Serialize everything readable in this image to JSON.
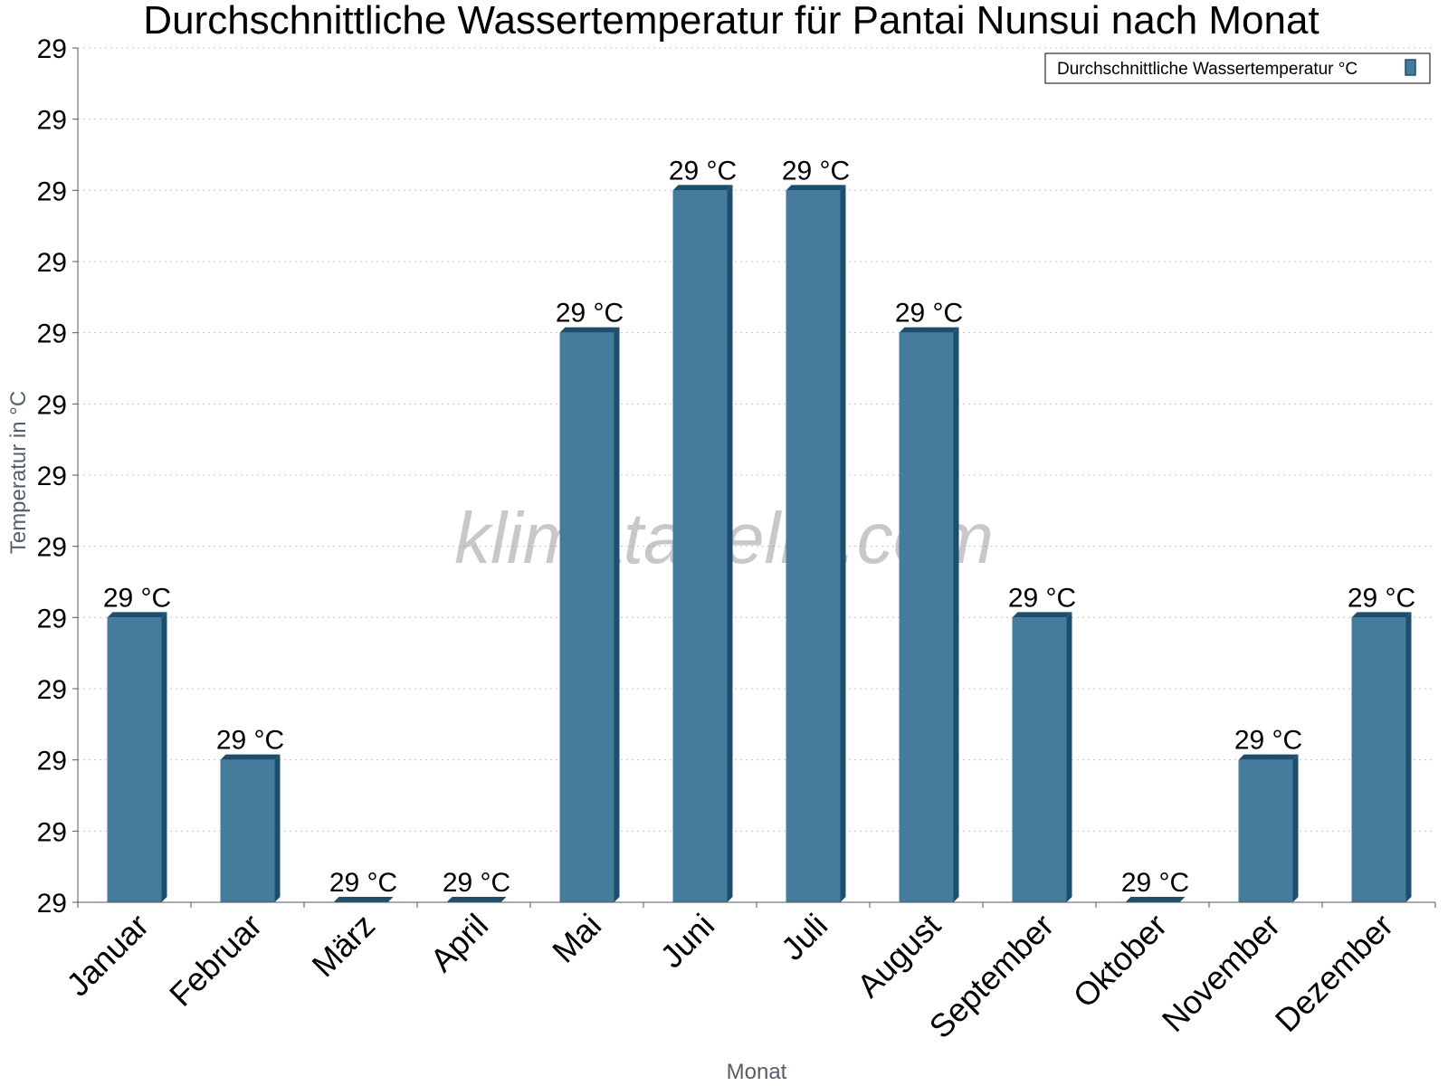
{
  "chart_data": {
    "type": "bar",
    "title": "Durchschnittliche Wassertemperatur für Pantai Nunsui nach Monat",
    "xlabel": "Monat",
    "ylabel": "Temperatur in °C",
    "categories": [
      "Januar",
      "Februar",
      "März",
      "April",
      "Mai",
      "Juni",
      "Juli",
      "August",
      "September",
      "Oktober",
      "November",
      "Dezember"
    ],
    "series": [
      {
        "name": "Durchschnittliche Wassertemperatur °C",
        "values": [
          28.92,
          28.9,
          28.88,
          28.88,
          28.96,
          28.98,
          28.98,
          28.96,
          28.92,
          28.88,
          28.9,
          28.92
        ],
        "labels": [
          "29 °C",
          "29 °C",
          "29 °C",
          "29 °C",
          "29 °C",
          "29 °C",
          "29 °C",
          "29 °C",
          "29 °C",
          "29 °C",
          "29 °C",
          "29 °C"
        ],
        "color": "#457b9d"
      }
    ],
    "ylim": [
      28.88,
      29.0
    ],
    "yticks": [
      28.88,
      28.89,
      28.9,
      28.91,
      28.92,
      28.93,
      28.94,
      28.95,
      28.96,
      28.97,
      28.98,
      28.99,
      29.0
    ],
    "ytick_labels": [
      "29",
      "29",
      "29",
      "29",
      "29",
      "29",
      "29",
      "29",
      "29",
      "29",
      "29",
      "29",
      "29"
    ],
    "grid": true,
    "legend_position": "top-right"
  },
  "watermark": "klimatabelle.com",
  "colors": {
    "bar": "#457b9d",
    "bar_side": "#1d4e6e",
    "grid": "#c8c8c8",
    "axis": "#555555"
  }
}
